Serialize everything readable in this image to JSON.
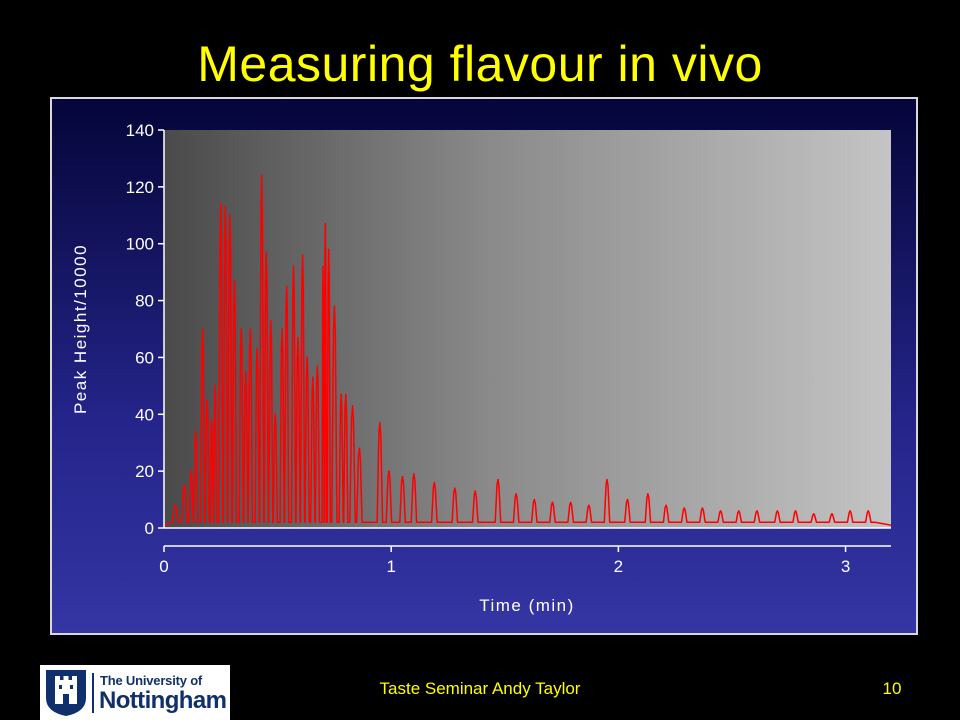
{
  "slide": {
    "title": "Measuring flavour in vivo",
    "footer": "Taste Seminar Andy Taylor",
    "page_number": "10"
  },
  "logo": {
    "line1": "The University of",
    "line2": "Nottingham"
  },
  "colors": {
    "title_text": "#FFFF00",
    "series_line": "#FF0000",
    "plot_area_dark": "#4a4a4a",
    "plot_area_light": "#c4c4c4",
    "axis_text": "#FFFFFF",
    "logo_blue": "#10306c"
  },
  "chart_data": {
    "type": "line",
    "title": "",
    "xlabel": "Time (min)",
    "ylabel": "Peak Height/10000",
    "xlim": [
      0,
      3.2
    ],
    "ylim": [
      0,
      140
    ],
    "x_ticks": [
      0,
      1,
      2,
      3
    ],
    "y_ticks": [
      0,
      20,
      40,
      60,
      80,
      100,
      120,
      140
    ],
    "grid": false,
    "legend": "none",
    "series": [
      {
        "peaks": [
          [
            0.05,
            8
          ],
          [
            0.09,
            15
          ],
          [
            0.12,
            20
          ],
          [
            0.14,
            34
          ],
          [
            0.17,
            70
          ],
          [
            0.19,
            45
          ],
          [
            0.21,
            38
          ],
          [
            0.225,
            50
          ],
          [
            0.25,
            114
          ],
          [
            0.27,
            113
          ],
          [
            0.29,
            110
          ],
          [
            0.31,
            87
          ],
          [
            0.34,
            70
          ],
          [
            0.36,
            55
          ],
          [
            0.38,
            70
          ],
          [
            0.41,
            63
          ],
          [
            0.43,
            124
          ],
          [
            0.45,
            97
          ],
          [
            0.47,
            73
          ],
          [
            0.49,
            40
          ],
          [
            0.52,
            70
          ],
          [
            0.54,
            85
          ],
          [
            0.57,
            92
          ],
          [
            0.59,
            67
          ],
          [
            0.61,
            96
          ],
          [
            0.63,
            60
          ],
          [
            0.655,
            53
          ],
          [
            0.675,
            57
          ],
          [
            0.7,
            92
          ],
          [
            0.71,
            107
          ],
          [
            0.725,
            98
          ],
          [
            0.75,
            78
          ],
          [
            0.78,
            47
          ],
          [
            0.8,
            47
          ],
          [
            0.83,
            43
          ],
          [
            0.86,
            28
          ],
          [
            0.95,
            37
          ],
          [
            0.99,
            20
          ],
          [
            1.05,
            18
          ],
          [
            1.1,
            19
          ],
          [
            1.19,
            16
          ],
          [
            1.28,
            14
          ],
          [
            1.37,
            13
          ],
          [
            1.47,
            17
          ],
          [
            1.55,
            12
          ],
          [
            1.63,
            10
          ],
          [
            1.71,
            9
          ],
          [
            1.79,
            9
          ],
          [
            1.87,
            8
          ],
          [
            1.95,
            17
          ],
          [
            2.04,
            10
          ],
          [
            2.13,
            12
          ],
          [
            2.21,
            8
          ],
          [
            2.29,
            7
          ],
          [
            2.37,
            7
          ],
          [
            2.45,
            6
          ],
          [
            2.53,
            6
          ],
          [
            2.61,
            6
          ],
          [
            2.7,
            6
          ],
          [
            2.78,
            6
          ],
          [
            2.86,
            5
          ],
          [
            2.94,
            5
          ],
          [
            3.02,
            6
          ],
          [
            3.1,
            6
          ]
        ],
        "baseline_minimum": 1,
        "tail": [
          [
            3.13,
            2
          ],
          [
            3.2,
            1
          ]
        ]
      }
    ]
  }
}
